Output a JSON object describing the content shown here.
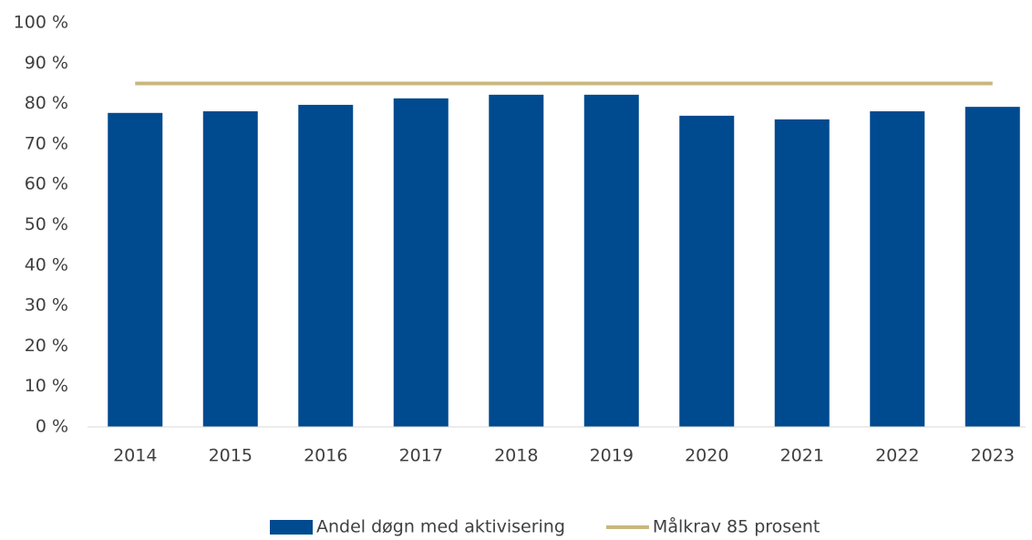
{
  "chart_data": {
    "type": "bar",
    "categories": [
      "2014",
      "2015",
      "2016",
      "2017",
      "2018",
      "2019",
      "2020",
      "2021",
      "2022",
      "2023"
    ],
    "series": [
      {
        "name": "Andel døgn med aktivisering",
        "type": "bar",
        "color": "#004a8f",
        "values": [
          77.7,
          78.1,
          79.7,
          81.3,
          82.2,
          82.2,
          77.0,
          76.1,
          78.1,
          79.2
        ]
      },
      {
        "name": "Målkrav 85 prosent",
        "type": "line",
        "color": "#c9b77c",
        "values": [
          85,
          85,
          85,
          85,
          85,
          85,
          85,
          85,
          85,
          85
        ]
      }
    ],
    "ylim": [
      0,
      100
    ],
    "yticks": [
      {
        "value": 0,
        "label": "0 %"
      },
      {
        "value": 10,
        "label": "10 %"
      },
      {
        "value": 20,
        "label": "20 %"
      },
      {
        "value": 30,
        "label": "30 %"
      },
      {
        "value": 40,
        "label": "40 %"
      },
      {
        "value": 50,
        "label": "50 %"
      },
      {
        "value": 60,
        "label": "60 %"
      },
      {
        "value": 70,
        "label": "70 %"
      },
      {
        "value": 80,
        "label": "80 %"
      },
      {
        "value": 90,
        "label": "90 %"
      },
      {
        "value": 100,
        "label": "100 %"
      }
    ],
    "grid": false,
    "legend": "bottom"
  }
}
